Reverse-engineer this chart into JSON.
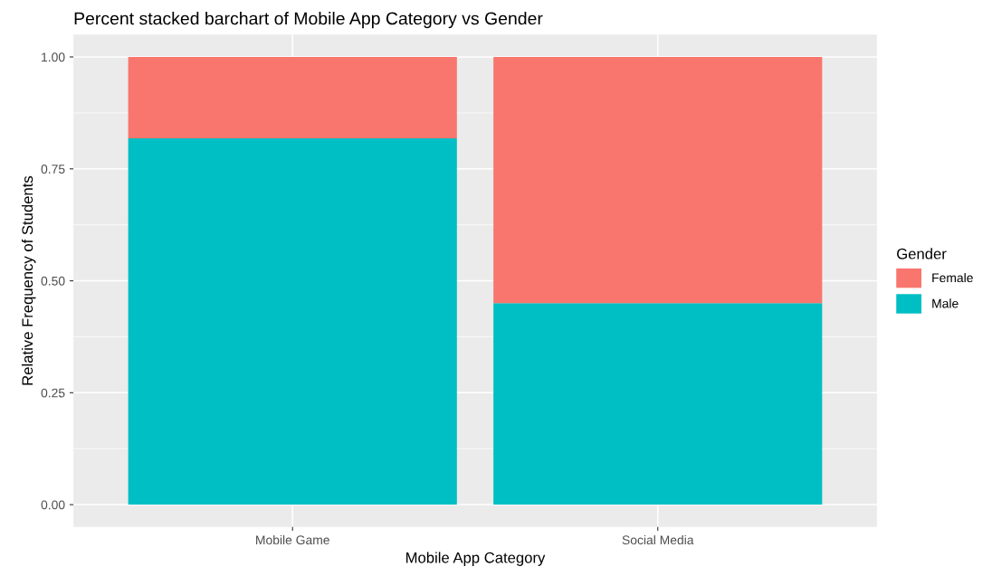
{
  "chart_data": {
    "type": "bar",
    "title": "Percent stacked barchart of Mobile App Category vs Gender",
    "xlabel": "Mobile App Category",
    "ylabel": "Relative Frequency of Students",
    "legend_title": "Gender",
    "categories": [
      "Mobile Game",
      "Social Media"
    ],
    "series": [
      {
        "name": "Male",
        "color": "#00bfc4",
        "values": [
          0.818,
          0.45
        ]
      },
      {
        "name": "Female",
        "color": "#f8766d",
        "values": [
          0.182,
          0.55
        ]
      }
    ],
    "stacked": true,
    "ylim": [
      -0.05,
      1.05
    ],
    "yticks": [
      {
        "value": 0,
        "label": "0.00"
      },
      {
        "value": 0.25,
        "label": "0.25"
      },
      {
        "value": 0.5,
        "label": "0.50"
      },
      {
        "value": 0.75,
        "label": "0.75"
      },
      {
        "value": 1,
        "label": "1.00"
      }
    ],
    "grid": true,
    "legend": "right"
  }
}
